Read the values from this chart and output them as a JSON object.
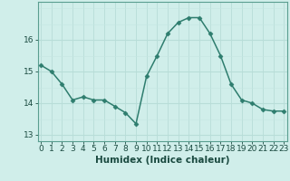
{
  "x": [
    0,
    1,
    2,
    3,
    4,
    5,
    6,
    7,
    8,
    9,
    10,
    11,
    12,
    13,
    14,
    15,
    16,
    17,
    18,
    19,
    20,
    21,
    22,
    23
  ],
  "y": [
    15.2,
    15.0,
    14.6,
    14.1,
    14.2,
    14.1,
    14.1,
    13.9,
    13.7,
    13.35,
    14.85,
    15.5,
    16.2,
    16.55,
    16.7,
    16.7,
    16.2,
    15.5,
    14.6,
    14.1,
    14.0,
    13.8,
    13.75,
    13.75
  ],
  "line_color": "#2e7d6e",
  "marker": "D",
  "marker_size": 2.5,
  "bg_color": "#d0eeea",
  "grid_color": "#b8ddd8",
  "grid_color2": "#c4e6e2",
  "xlabel": "Humidex (Indice chaleur)",
  "xlabel_fontsize": 7.5,
  "yticks": [
    13,
    14,
    15,
    16
  ],
  "xticks": [
    0,
    1,
    2,
    3,
    4,
    5,
    6,
    7,
    8,
    9,
    10,
    11,
    12,
    13,
    14,
    15,
    16,
    17,
    18,
    19,
    20,
    21,
    22,
    23
  ],
  "ylim": [
    12.8,
    17.2
  ],
  "xlim": [
    -0.3,
    23.3
  ],
  "tick_fontsize": 6.5,
  "line_width": 1.1,
  "spine_color": "#5a9e90"
}
